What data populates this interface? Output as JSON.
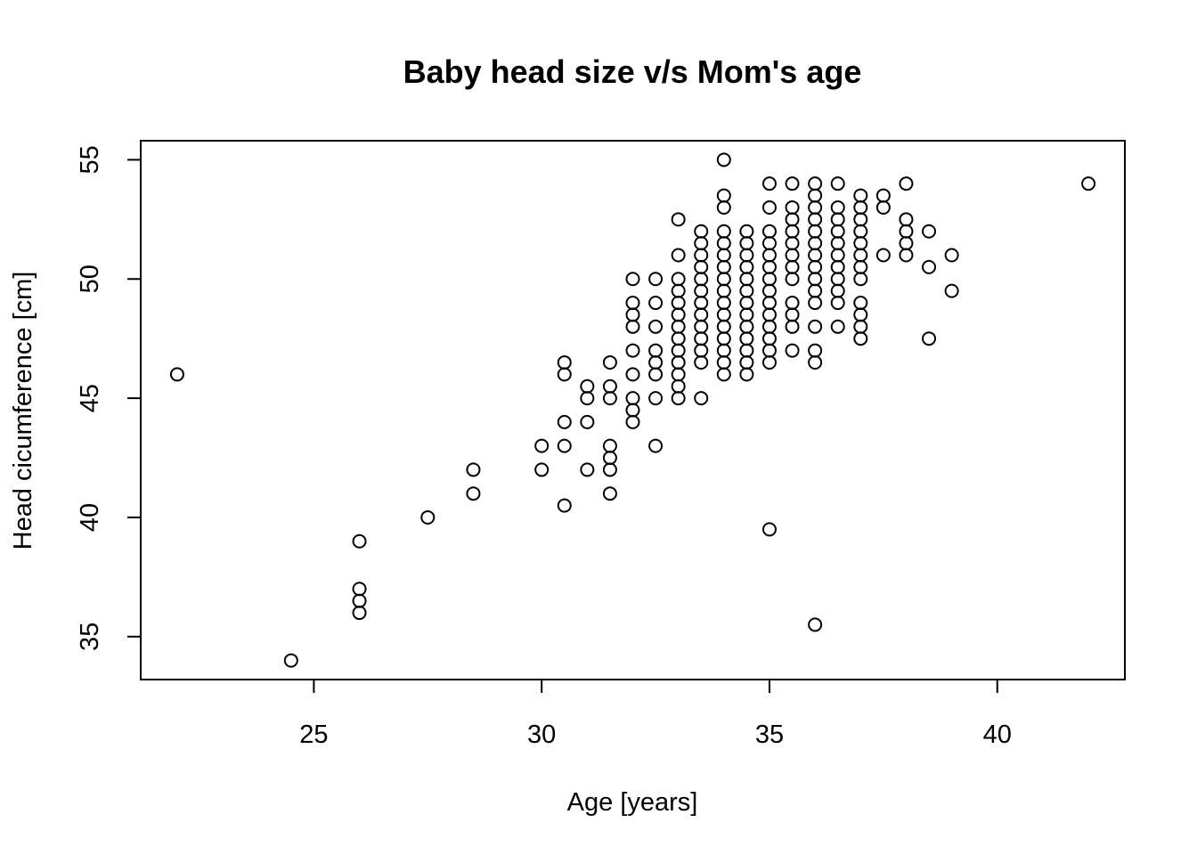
{
  "chart_data": {
    "type": "scatter",
    "title": "Baby head size v/s Mom's age",
    "xlabel": "Age [years]",
    "ylabel": "Head cicumference [cm]",
    "xlim": [
      21.2,
      42.8
    ],
    "ylim": [
      33.2,
      55.8
    ],
    "xticks": [
      25,
      30,
      35,
      40
    ],
    "yticks": [
      35,
      40,
      45,
      50,
      55
    ],
    "grid": false,
    "legend": "none",
    "marker": "open-circle",
    "points": [
      [
        22,
        46
      ],
      [
        24.5,
        34
      ],
      [
        26,
        39
      ],
      [
        26,
        37
      ],
      [
        26,
        36.5
      ],
      [
        26,
        36
      ],
      [
        27.5,
        40
      ],
      [
        28.5,
        42
      ],
      [
        28.5,
        41
      ],
      [
        30,
        43
      ],
      [
        30,
        42
      ],
      [
        30.5,
        46.5
      ],
      [
        30.5,
        46
      ],
      [
        30.5,
        44
      ],
      [
        30.5,
        43
      ],
      [
        30.5,
        40.5
      ],
      [
        31,
        45.5
      ],
      [
        31,
        45
      ],
      [
        31,
        44
      ],
      [
        31,
        42
      ],
      [
        31.5,
        46.5
      ],
      [
        31.5,
        45.5
      ],
      [
        31.5,
        45
      ],
      [
        31.5,
        43
      ],
      [
        31.5,
        42.5
      ],
      [
        31.5,
        42
      ],
      [
        31.5,
        41
      ],
      [
        32,
        50
      ],
      [
        32,
        49
      ],
      [
        32,
        48.5
      ],
      [
        32,
        48
      ],
      [
        32,
        47
      ],
      [
        32,
        46
      ],
      [
        32,
        45
      ],
      [
        32,
        44.5
      ],
      [
        32,
        44
      ],
      [
        32.5,
        50
      ],
      [
        32.5,
        49
      ],
      [
        32.5,
        48
      ],
      [
        32.5,
        47
      ],
      [
        32.5,
        46.5
      ],
      [
        32.5,
        46
      ],
      [
        32.5,
        45
      ],
      [
        32.5,
        43
      ],
      [
        33,
        52.5
      ],
      [
        33,
        51
      ],
      [
        33,
        50
      ],
      [
        33,
        49.5
      ],
      [
        33,
        49
      ],
      [
        33,
        48.5
      ],
      [
        33,
        48
      ],
      [
        33,
        47.5
      ],
      [
        33,
        47
      ],
      [
        33,
        46.5
      ],
      [
        33,
        46
      ],
      [
        33,
        45.5
      ],
      [
        33,
        45
      ],
      [
        33.5,
        52
      ],
      [
        33.5,
        51.5
      ],
      [
        33.5,
        51
      ],
      [
        33.5,
        50.5
      ],
      [
        33.5,
        50
      ],
      [
        33.5,
        49.5
      ],
      [
        33.5,
        49
      ],
      [
        33.5,
        48.5
      ],
      [
        33.5,
        48
      ],
      [
        33.5,
        47.5
      ],
      [
        33.5,
        47
      ],
      [
        33.5,
        46.5
      ],
      [
        33.5,
        45
      ],
      [
        34,
        55
      ],
      [
        34,
        53.5
      ],
      [
        34,
        53
      ],
      [
        34,
        52
      ],
      [
        34,
        51.5
      ],
      [
        34,
        51
      ],
      [
        34,
        50.5
      ],
      [
        34,
        50
      ],
      [
        34,
        49.5
      ],
      [
        34,
        49
      ],
      [
        34,
        48.5
      ],
      [
        34,
        48
      ],
      [
        34,
        47.5
      ],
      [
        34,
        47
      ],
      [
        34,
        46.5
      ],
      [
        34,
        46
      ],
      [
        34.5,
        52
      ],
      [
        34.5,
        51.5
      ],
      [
        34.5,
        51
      ],
      [
        34.5,
        50.5
      ],
      [
        34.5,
        50
      ],
      [
        34.5,
        49.5
      ],
      [
        34.5,
        49
      ],
      [
        34.5,
        48.5
      ],
      [
        34.5,
        48
      ],
      [
        34.5,
        47.5
      ],
      [
        34.5,
        47
      ],
      [
        34.5,
        46.5
      ],
      [
        34.5,
        46
      ],
      [
        35,
        54
      ],
      [
        35,
        53
      ],
      [
        35,
        52
      ],
      [
        35,
        51.5
      ],
      [
        35,
        51
      ],
      [
        35,
        50.5
      ],
      [
        35,
        50
      ],
      [
        35,
        49.5
      ],
      [
        35,
        49
      ],
      [
        35,
        48.5
      ],
      [
        35,
        48
      ],
      [
        35,
        47.5
      ],
      [
        35,
        47
      ],
      [
        35,
        46.5
      ],
      [
        35,
        39.5
      ],
      [
        35.5,
        54
      ],
      [
        35.5,
        53
      ],
      [
        35.5,
        52.5
      ],
      [
        35.5,
        52
      ],
      [
        35.5,
        51.5
      ],
      [
        35.5,
        51
      ],
      [
        35.5,
        50.5
      ],
      [
        35.5,
        50
      ],
      [
        35.5,
        49
      ],
      [
        35.5,
        48.5
      ],
      [
        35.5,
        48
      ],
      [
        35.5,
        47
      ],
      [
        36,
        54
      ],
      [
        36,
        53.5
      ],
      [
        36,
        53
      ],
      [
        36,
        52.5
      ],
      [
        36,
        52
      ],
      [
        36,
        51.5
      ],
      [
        36,
        51
      ],
      [
        36,
        50.5
      ],
      [
        36,
        50
      ],
      [
        36,
        49.5
      ],
      [
        36,
        49
      ],
      [
        36,
        48
      ],
      [
        36,
        47
      ],
      [
        36,
        46.5
      ],
      [
        36,
        35.5
      ],
      [
        36.5,
        54
      ],
      [
        36.5,
        53
      ],
      [
        36.5,
        52.5
      ],
      [
        36.5,
        52
      ],
      [
        36.5,
        51.5
      ],
      [
        36.5,
        51
      ],
      [
        36.5,
        50.5
      ],
      [
        36.5,
        50
      ],
      [
        36.5,
        49.5
      ],
      [
        36.5,
        49
      ],
      [
        36.5,
        48
      ],
      [
        37,
        53.5
      ],
      [
        37,
        53
      ],
      [
        37,
        52.5
      ],
      [
        37,
        52
      ],
      [
        37,
        51.5
      ],
      [
        37,
        51
      ],
      [
        37,
        50.5
      ],
      [
        37,
        50
      ],
      [
        37,
        49
      ],
      [
        37,
        48.5
      ],
      [
        37,
        48
      ],
      [
        37,
        47.5
      ],
      [
        37.5,
        53.5
      ],
      [
        37.5,
        53
      ],
      [
        37.5,
        51
      ],
      [
        38,
        54
      ],
      [
        38,
        52.5
      ],
      [
        38,
        52
      ],
      [
        38,
        51.5
      ],
      [
        38,
        51
      ],
      [
        38.5,
        52
      ],
      [
        38.5,
        50.5
      ],
      [
        38.5,
        47.5
      ],
      [
        39,
        51
      ],
      [
        39,
        49.5
      ],
      [
        42,
        54
      ]
    ]
  }
}
